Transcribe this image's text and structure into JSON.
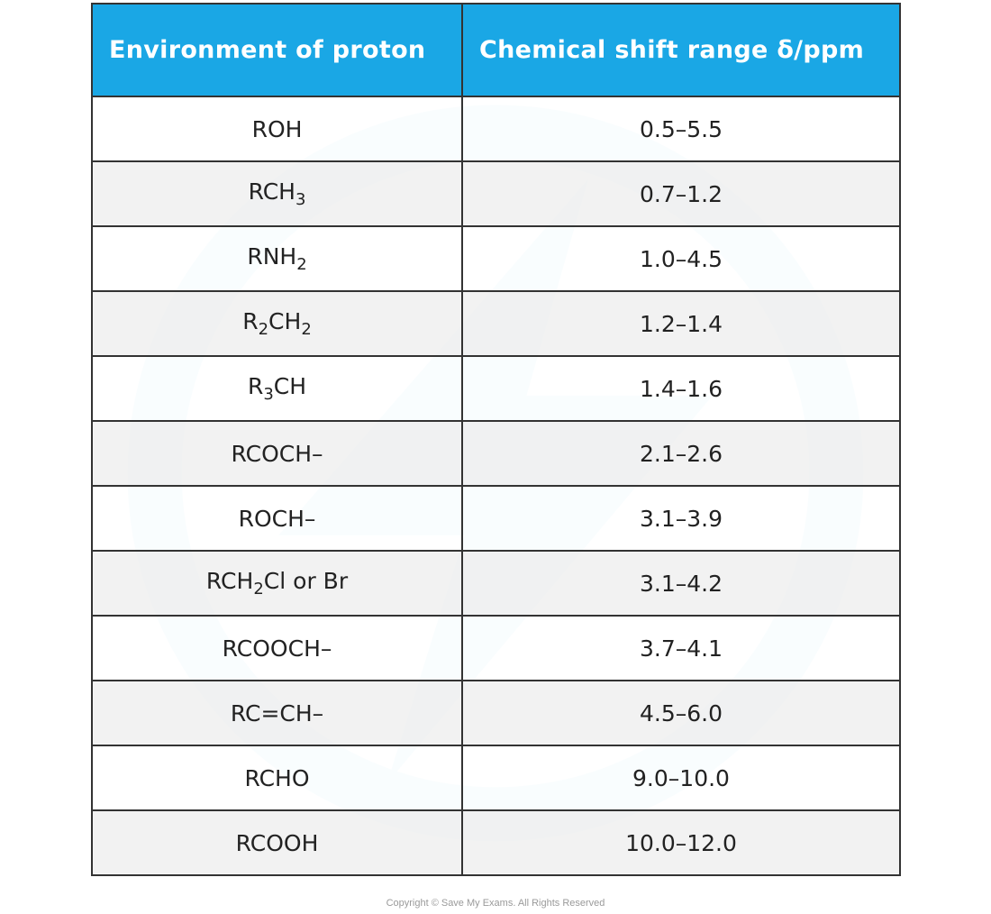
{
  "table": {
    "headers": [
      "Environment of proton",
      "Chemical shift range  δ/ppm"
    ],
    "rows": [
      {
        "environment": "ROH",
        "shift": "0.5–5.5"
      },
      {
        "environment": "RCH3",
        "shift": "0.7–1.2"
      },
      {
        "environment": "RNH2",
        "shift": "1.0–4.5"
      },
      {
        "environment": "R2CH2",
        "shift": "1.2–1.4"
      },
      {
        "environment": "R3CH",
        "shift": "1.4–1.6"
      },
      {
        "environment": "RCOCH–",
        "shift": "2.1–2.6"
      },
      {
        "environment": "ROCH–",
        "shift": "3.1–3.9"
      },
      {
        "environment": "RCH2Cl or Br",
        "shift": "3.1–4.2"
      },
      {
        "environment": "RCOOCH–",
        "shift": "3.7–4.1"
      },
      {
        "environment": "RC=CH–",
        "shift": "4.5–6.0"
      },
      {
        "environment": "RCHO",
        "shift": "9.0–10.0"
      },
      {
        "environment": "RCOOH",
        "shift": "10.0–12.0"
      }
    ]
  },
  "footer": {
    "copyright": "Copyright © Save My Exams. All Rights Reserved"
  },
  "colors": {
    "header_bg": "#1aa7e5",
    "header_text": "#ffffff",
    "border": "#333333",
    "alt_row": "#f0f0f0"
  }
}
